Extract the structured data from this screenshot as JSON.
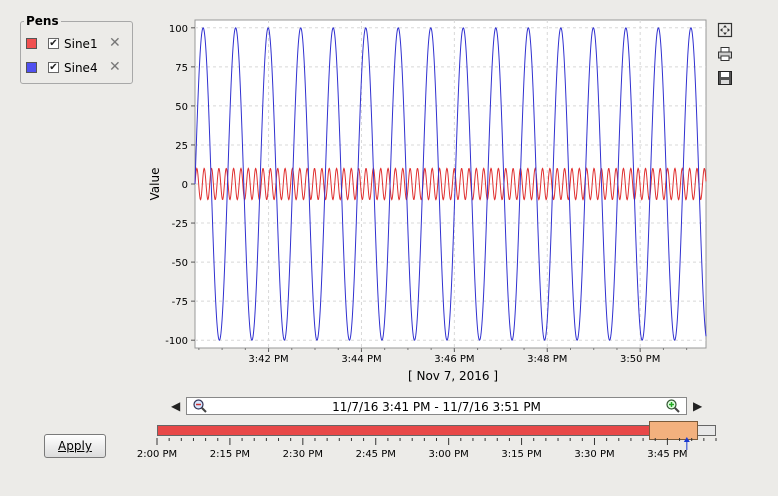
{
  "pens": {
    "title": "Pens",
    "items": [
      {
        "label": "Sine1",
        "color": "#f05050",
        "checked": true
      },
      {
        "label": "Sine4",
        "color": "#5050f0",
        "checked": true
      }
    ]
  },
  "chart_data": {
    "type": "line",
    "ylabel": "Value",
    "xlabel": "[ Nov 7, 2016 ]",
    "ylim": [
      -105,
      105
    ],
    "yticks": [
      "100",
      "75",
      "50",
      "25",
      "0",
      "-25",
      "-50",
      "-75",
      "-100"
    ],
    "xlim": [
      "3:40:25 PM",
      "3:51:25 PM"
    ],
    "xticks": [
      "3:42 PM",
      "3:44 PM",
      "3:46 PM",
      "3:48 PM",
      "3:50 PM"
    ],
    "grid": true,
    "series": [
      {
        "name": "Sine1",
        "color": "#e03030",
        "amplitude": 10,
        "period_seconds": 9.5,
        "offset": 0
      },
      {
        "name": "Sine4",
        "color": "#3030d0",
        "amplitude": 100,
        "period_seconds": 42,
        "offset": 0
      }
    ]
  },
  "toolbar": {
    "icons": [
      "fit-icon",
      "print-icon",
      "save-icon"
    ]
  },
  "range": {
    "text": "11/7/16 3:41 PM - 11/7/16 3:51 PM",
    "prev": "◀",
    "next": "▶"
  },
  "apply": {
    "label": "Apply"
  },
  "timeline": {
    "labels": [
      "2:00 PM",
      "2:15 PM",
      "2:30 PM",
      "2:45 PM",
      "3:00 PM",
      "3:15 PM",
      "3:30 PM",
      "3:45 PM"
    ],
    "start": "2:00 PM",
    "end": "3:55 PM",
    "filled_until": "3:45 PM",
    "window_start": "3:41 PM",
    "window_end": "3:51 PM",
    "now_marker": "3:49 PM"
  }
}
